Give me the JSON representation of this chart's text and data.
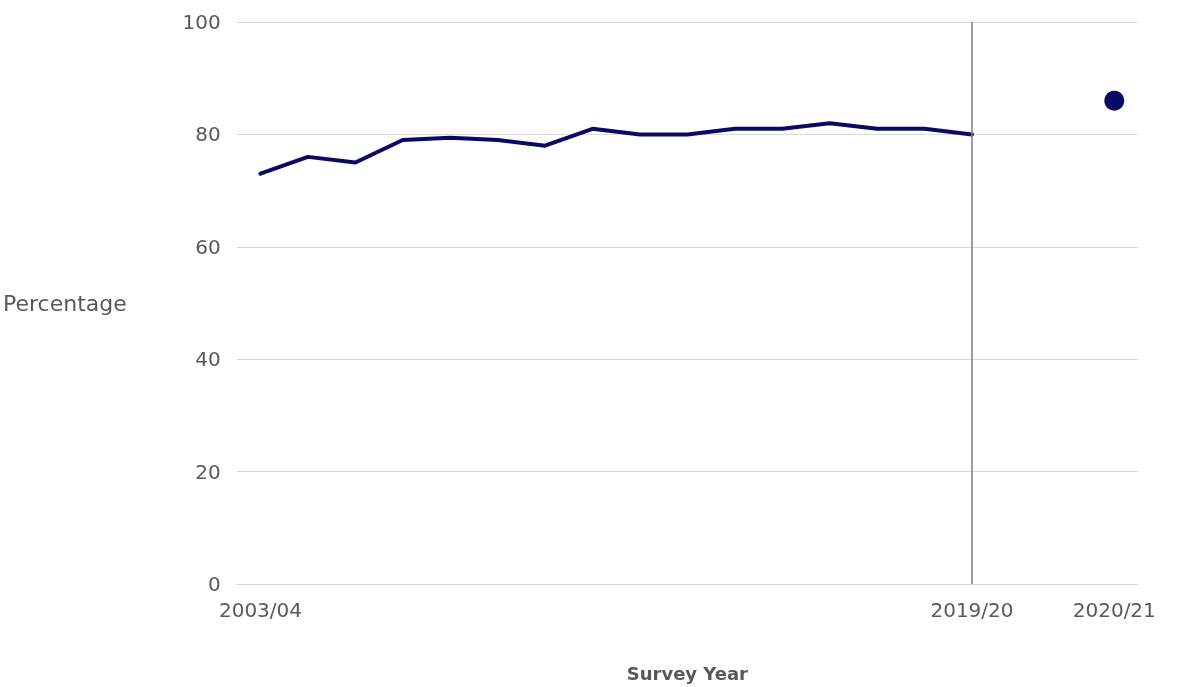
{
  "chart_data": {
    "type": "line",
    "xlabel": "Survey Year",
    "ylabel": "Percentage",
    "categories": [
      "2003/04",
      null,
      null,
      null,
      null,
      null,
      null,
      null,
      null,
      null,
      null,
      null,
      null,
      null,
      null,
      "2019/20",
      null,
      null,
      "2020/21"
    ],
    "series": [
      {
        "color": "#0a0a64",
        "marker": "none",
        "values": [
          73,
          76,
          75,
          79,
          79.4,
          79,
          78,
          81,
          80,
          80,
          81,
          81,
          82,
          81,
          81,
          80,
          null,
          null,
          null
        ]
      },
      {
        "type": "scatter",
        "color": "#0a0a64",
        "marker": "circle",
        "values": [
          null,
          null,
          null,
          null,
          null,
          null,
          null,
          null,
          null,
          null,
          null,
          null,
          null,
          null,
          null,
          null,
          null,
          null,
          86
        ]
      }
    ],
    "ylim": [
      0,
      100
    ],
    "yticks": [
      0,
      20,
      40,
      60,
      80,
      100
    ],
    "grid": "y",
    "ref_lines": [
      {
        "axis": "x",
        "value": "2019/20",
        "color": "#7f7f7f"
      }
    ]
  }
}
